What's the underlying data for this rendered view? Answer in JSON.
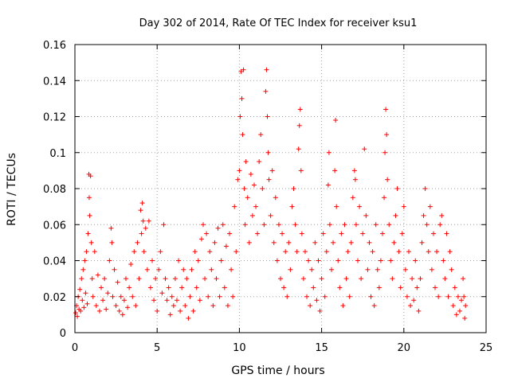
{
  "chart_data": {
    "type": "scatter",
    "title": "Day 302 of 2014, Rate Of TEC Index for receiver ksu1",
    "xlabel": "GPS time / hours",
    "ylabel": "ROTI / TECUs",
    "xlim": [
      0,
      25
    ],
    "ylim": [
      0,
      0.16
    ],
    "xticks": [
      0,
      5,
      10,
      15,
      20,
      25
    ],
    "xtick_labels": [
      "0",
      "5",
      "10",
      "15",
      "20",
      "25"
    ],
    "yticks": [
      0,
      0.02,
      0.04,
      0.06,
      0.08,
      0.1,
      0.12,
      0.14,
      0.16
    ],
    "ytick_labels": [
      "0",
      "0.02",
      "0.04",
      "0.06",
      "0.08",
      "0.1",
      "0.12",
      "0.14",
      "0.16"
    ],
    "grid": true,
    "marker": "plus",
    "color": "#ff0000",
    "series": [
      {
        "name": "ROTI",
        "points": [
          [
            0.05,
            0.011
          ],
          [
            0.1,
            0.015
          ],
          [
            0.15,
            0.009
          ],
          [
            0.2,
            0.02
          ],
          [
            0.25,
            0.013
          ],
          [
            0.3,
            0.024
          ],
          [
            0.35,
            0.012
          ],
          [
            0.4,
            0.03
          ],
          [
            0.45,
            0.018
          ],
          [
            0.5,
            0.035
          ],
          [
            0.55,
            0.014
          ],
          [
            0.6,
            0.04
          ],
          [
            0.65,
            0.022
          ],
          [
            0.7,
            0.045
          ],
          [
            0.75,
            0.016
          ],
          [
            0.8,
            0.055
          ],
          [
            0.85,
            0.088
          ],
          [
            0.87,
            0.075
          ],
          [
            0.9,
            0.065
          ],
          [
            0.95,
            0.087
          ],
          [
            1.0,
            0.05
          ],
          [
            1.05,
            0.03
          ],
          [
            1.1,
            0.02
          ],
          [
            1.2,
            0.045
          ],
          [
            1.3,
            0.015
          ],
          [
            1.4,
            0.032
          ],
          [
            1.5,
            0.012
          ],
          [
            1.6,
            0.025
          ],
          [
            1.7,
            0.018
          ],
          [
            1.8,
            0.03
          ],
          [
            1.9,
            0.013
          ],
          [
            2.0,
            0.022
          ],
          [
            2.1,
            0.04
          ],
          [
            2.2,
            0.058
          ],
          [
            2.25,
            0.05
          ],
          [
            2.3,
            0.02
          ],
          [
            2.4,
            0.035
          ],
          [
            2.5,
            0.015
          ],
          [
            2.6,
            0.028
          ],
          [
            2.7,
            0.012
          ],
          [
            2.8,
            0.02
          ],
          [
            2.9,
            0.01
          ],
          [
            3.0,
            0.018
          ],
          [
            3.1,
            0.03
          ],
          [
            3.2,
            0.014
          ],
          [
            3.3,
            0.025
          ],
          [
            3.4,
            0.038
          ],
          [
            3.5,
            0.02
          ],
          [
            3.6,
            0.045
          ],
          [
            3.7,
            0.015
          ],
          [
            3.8,
            0.05
          ],
          [
            3.9,
            0.03
          ],
          [
            4.0,
            0.068
          ],
          [
            4.05,
            0.055
          ],
          [
            4.1,
            0.072
          ],
          [
            4.15,
            0.062
          ],
          [
            4.2,
            0.045
          ],
          [
            4.3,
            0.058
          ],
          [
            4.4,
            0.035
          ],
          [
            4.5,
            0.062
          ],
          [
            4.6,
            0.025
          ],
          [
            4.7,
            0.04
          ],
          [
            4.8,
            0.018
          ],
          [
            4.9,
            0.03
          ],
          [
            5.0,
            0.012
          ],
          [
            5.1,
            0.035
          ],
          [
            5.2,
            0.045
          ],
          [
            5.3,
            0.022
          ],
          [
            5.4,
            0.06
          ],
          [
            5.5,
            0.03
          ],
          [
            5.6,
            0.018
          ],
          [
            5.7,
            0.025
          ],
          [
            5.8,
            0.01
          ],
          [
            5.9,
            0.02
          ],
          [
            6.0,
            0.015
          ],
          [
            6.1,
            0.03
          ],
          [
            6.2,
            0.018
          ],
          [
            6.3,
            0.04
          ],
          [
            6.4,
            0.012
          ],
          [
            6.5,
            0.025
          ],
          [
            6.6,
            0.035
          ],
          [
            6.7,
            0.015
          ],
          [
            6.8,
            0.03
          ],
          [
            6.9,
            0.008
          ],
          [
            7.0,
            0.02
          ],
          [
            7.1,
            0.035
          ],
          [
            7.2,
            0.012
          ],
          [
            7.3,
            0.045
          ],
          [
            7.4,
            0.025
          ],
          [
            7.5,
            0.04
          ],
          [
            7.6,
            0.018
          ],
          [
            7.7,
            0.052
          ],
          [
            7.8,
            0.06
          ],
          [
            7.9,
            0.03
          ],
          [
            8.0,
            0.055
          ],
          [
            8.1,
            0.02
          ],
          [
            8.2,
            0.045
          ],
          [
            8.3,
            0.035
          ],
          [
            8.4,
            0.015
          ],
          [
            8.5,
            0.05
          ],
          [
            8.6,
            0.03
          ],
          [
            8.7,
            0.058
          ],
          [
            8.8,
            0.02
          ],
          [
            8.9,
            0.04
          ],
          [
            9.0,
            0.06
          ],
          [
            9.1,
            0.025
          ],
          [
            9.2,
            0.048
          ],
          [
            9.3,
            0.015
          ],
          [
            9.4,
            0.055
          ],
          [
            9.5,
            0.035
          ],
          [
            9.6,
            0.02
          ],
          [
            9.7,
            0.07
          ],
          [
            9.8,
            0.045
          ],
          [
            9.9,
            0.085
          ],
          [
            10.0,
            0.09
          ],
          [
            10.05,
            0.12
          ],
          [
            10.1,
            0.145
          ],
          [
            10.15,
            0.13
          ],
          [
            10.2,
            0.11
          ],
          [
            10.25,
            0.146
          ],
          [
            10.3,
            0.08
          ],
          [
            10.35,
            0.06
          ],
          [
            10.4,
            0.095
          ],
          [
            10.5,
            0.075
          ],
          [
            10.6,
            0.05
          ],
          [
            10.7,
            0.088
          ],
          [
            10.8,
            0.065
          ],
          [
            10.9,
            0.082
          ],
          [
            11.0,
            0.07
          ],
          [
            11.1,
            0.055
          ],
          [
            11.2,
            0.095
          ],
          [
            11.3,
            0.11
          ],
          [
            11.4,
            0.08
          ],
          [
            11.5,
            0.06
          ],
          [
            11.6,
            0.134
          ],
          [
            11.65,
            0.146
          ],
          [
            11.7,
            0.12
          ],
          [
            11.75,
            0.1
          ],
          [
            11.8,
            0.085
          ],
          [
            11.9,
            0.065
          ],
          [
            12.0,
            0.09
          ],
          [
            12.1,
            0.05
          ],
          [
            12.2,
            0.075
          ],
          [
            12.3,
            0.04
          ],
          [
            12.4,
            0.06
          ],
          [
            12.5,
            0.03
          ],
          [
            12.6,
            0.055
          ],
          [
            12.7,
            0.025
          ],
          [
            12.8,
            0.045
          ],
          [
            12.9,
            0.02
          ],
          [
            13.0,
            0.05
          ],
          [
            13.1,
            0.035
          ],
          [
            13.2,
            0.07
          ],
          [
            13.3,
            0.08
          ],
          [
            13.4,
            0.06
          ],
          [
            13.5,
            0.045
          ],
          [
            13.6,
            0.102
          ],
          [
            13.65,
            0.115
          ],
          [
            13.7,
            0.124
          ],
          [
            13.75,
            0.09
          ],
          [
            13.8,
            0.055
          ],
          [
            13.9,
            0.03
          ],
          [
            14.0,
            0.045
          ],
          [
            14.1,
            0.02
          ],
          [
            14.2,
            0.04
          ],
          [
            14.3,
            0.015
          ],
          [
            14.4,
            0.035
          ],
          [
            14.5,
            0.025
          ],
          [
            14.6,
            0.05
          ],
          [
            14.7,
            0.018
          ],
          [
            14.8,
            0.04
          ],
          [
            14.9,
            0.012
          ],
          [
            15.0,
            0.03
          ],
          [
            15.1,
            0.055
          ],
          [
            15.2,
            0.02
          ],
          [
            15.3,
            0.045
          ],
          [
            15.4,
            0.082
          ],
          [
            15.45,
            0.1
          ],
          [
            15.5,
            0.06
          ],
          [
            15.6,
            0.035
          ],
          [
            15.7,
            0.05
          ],
          [
            15.8,
            0.09
          ],
          [
            15.85,
            0.118
          ],
          [
            15.9,
            0.07
          ],
          [
            16.0,
            0.04
          ],
          [
            16.1,
            0.025
          ],
          [
            16.2,
            0.055
          ],
          [
            16.3,
            0.015
          ],
          [
            16.4,
            0.06
          ],
          [
            16.5,
            0.03
          ],
          [
            16.6,
            0.045
          ],
          [
            16.7,
            0.02
          ],
          [
            16.8,
            0.05
          ],
          [
            16.9,
            0.075
          ],
          [
            17.0,
            0.09
          ],
          [
            17.05,
            0.085
          ],
          [
            17.1,
            0.06
          ],
          [
            17.2,
            0.04
          ],
          [
            17.3,
            0.07
          ],
          [
            17.4,
            0.03
          ],
          [
            17.5,
            0.055
          ],
          [
            17.6,
            0.102
          ],
          [
            17.7,
            0.065
          ],
          [
            17.8,
            0.035
          ],
          [
            17.9,
            0.05
          ],
          [
            18.0,
            0.02
          ],
          [
            18.1,
            0.045
          ],
          [
            18.2,
            0.015
          ],
          [
            18.3,
            0.06
          ],
          [
            18.4,
            0.035
          ],
          [
            18.5,
            0.025
          ],
          [
            18.6,
            0.04
          ],
          [
            18.7,
            0.055
          ],
          [
            18.8,
            0.075
          ],
          [
            18.85,
            0.1
          ],
          [
            18.9,
            0.124
          ],
          [
            18.95,
            0.11
          ],
          [
            19.0,
            0.085
          ],
          [
            19.1,
            0.06
          ],
          [
            19.2,
            0.04
          ],
          [
            19.3,
            0.03
          ],
          [
            19.4,
            0.05
          ],
          [
            19.5,
            0.065
          ],
          [
            19.6,
            0.08
          ],
          [
            19.7,
            0.045
          ],
          [
            19.8,
            0.025
          ],
          [
            19.9,
            0.055
          ],
          [
            20.0,
            0.07
          ],
          [
            20.1,
            0.035
          ],
          [
            20.2,
            0.02
          ],
          [
            20.3,
            0.045
          ],
          [
            20.4,
            0.015
          ],
          [
            20.5,
            0.03
          ],
          [
            20.6,
            0.018
          ],
          [
            20.7,
            0.04
          ],
          [
            20.8,
            0.025
          ],
          [
            20.9,
            0.012
          ],
          [
            21.0,
            0.03
          ],
          [
            21.1,
            0.05
          ],
          [
            21.2,
            0.065
          ],
          [
            21.3,
            0.08
          ],
          [
            21.4,
            0.06
          ],
          [
            21.5,
            0.045
          ],
          [
            21.6,
            0.07
          ],
          [
            21.7,
            0.035
          ],
          [
            21.8,
            0.055
          ],
          [
            21.9,
            0.025
          ],
          [
            22.0,
            0.045
          ],
          [
            22.1,
            0.02
          ],
          [
            22.2,
            0.06
          ],
          [
            22.3,
            0.065
          ],
          [
            22.4,
            0.04
          ],
          [
            22.5,
            0.03
          ],
          [
            22.6,
            0.055
          ],
          [
            22.7,
            0.02
          ],
          [
            22.8,
            0.045
          ],
          [
            22.9,
            0.035
          ],
          [
            23.0,
            0.015
          ],
          [
            23.1,
            0.025
          ],
          [
            23.2,
            0.01
          ],
          [
            23.3,
            0.02
          ],
          [
            23.4,
            0.012
          ],
          [
            23.5,
            0.018
          ],
          [
            23.6,
            0.03
          ],
          [
            23.65,
            0.02
          ],
          [
            23.7,
            0.008
          ],
          [
            23.75,
            0.015
          ]
        ]
      }
    ]
  }
}
